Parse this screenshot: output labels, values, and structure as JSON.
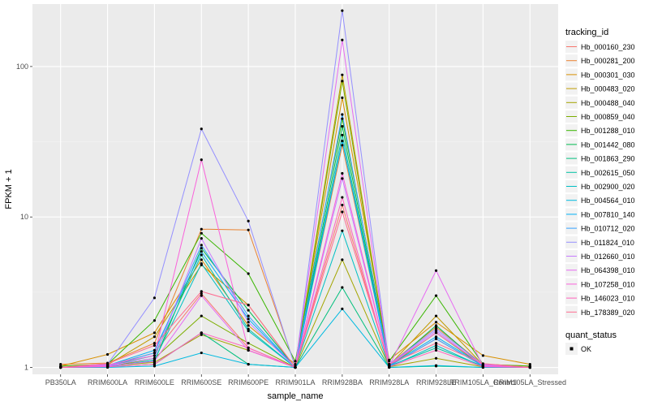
{
  "chart_data": {
    "type": "line",
    "title": "",
    "xlabel": "sample_name",
    "ylabel": "FPKM + 1",
    "y_scale": "log10",
    "ylim": [
      0.9,
      260
    ],
    "y_ticks": [
      1,
      10,
      100
    ],
    "y_tick_labels": [
      "1",
      "10",
      "100"
    ],
    "grid": true,
    "legend_position": "right",
    "categories": [
      "PB350LA",
      "RRIM600LA",
      "RRIM600LE",
      "RRIM600SE",
      "RRIM600PE",
      "RRIM901LA",
      "RRIM928BA",
      "RRIM928LA",
      "RRIM928LE",
      "RRIM105LA_Control",
      "RRIM105LA_Stressed"
    ],
    "series": [
      {
        "name": "Hb_000160_230",
        "color": "#F8766D",
        "values": [
          1.0,
          1.03,
          1.25,
          3.1,
          1.35,
          1.0,
          12.0,
          1.02,
          1.55,
          1.02,
          1.0
        ]
      },
      {
        "name": "Hb_000281_200",
        "color": "#EA8331",
        "values": [
          1.05,
          1.07,
          1.45,
          8.3,
          8.2,
          1.02,
          30.0,
          1.05,
          1.85,
          1.05,
          1.02
        ]
      },
      {
        "name": "Hb_000301_030",
        "color": "#D89000",
        "values": [
          1.02,
          1.22,
          1.7,
          5.2,
          1.9,
          1.05,
          62.0,
          1.12,
          2.0,
          1.2,
          1.05
        ]
      },
      {
        "name": "Hb_000483_020",
        "color": "#C09B00",
        "values": [
          1.0,
          1.04,
          1.6,
          4.8,
          2.6,
          1.0,
          88.0,
          1.03,
          2.2,
          1.04,
          1.0
        ]
      },
      {
        "name": "Hb_000488_040",
        "color": "#A3A500",
        "values": [
          1.0,
          1.02,
          1.08,
          1.65,
          1.3,
          1.0,
          5.2,
          1.01,
          1.15,
          1.01,
          1.0
        ]
      },
      {
        "name": "Hb_000859_040",
        "color": "#7CAE00",
        "values": [
          1.0,
          1.01,
          1.15,
          2.2,
          1.45,
          1.0,
          80.0,
          1.02,
          1.7,
          1.02,
          1.0
        ]
      },
      {
        "name": "Hb_001288_010",
        "color": "#39B600",
        "values": [
          1.02,
          1.05,
          2.05,
          7.8,
          4.2,
          1.1,
          45.0,
          1.1,
          3.0,
          1.05,
          1.02
        ]
      },
      {
        "name": "Hb_001442_080",
        "color": "#00BB4E",
        "values": [
          1.0,
          1.02,
          1.1,
          6.2,
          2.4,
          1.0,
          40.0,
          1.02,
          1.9,
          1.02,
          1.0
        ]
      },
      {
        "name": "Hb_001863_290",
        "color": "#00BF7D",
        "values": [
          1.0,
          1.01,
          1.05,
          1.7,
          1.05,
          1.0,
          3.4,
          1.0,
          1.02,
          1.0,
          1.0
        ]
      },
      {
        "name": "Hb_002615_050",
        "color": "#00C1A3",
        "values": [
          1.0,
          1.02,
          1.2,
          5.6,
          1.8,
          1.0,
          35.0,
          1.02,
          1.35,
          1.02,
          1.0
        ]
      },
      {
        "name": "Hb_002900_020",
        "color": "#00BFC4",
        "values": [
          1.0,
          1.01,
          1.12,
          4.9,
          1.75,
          1.0,
          8.1,
          1.01,
          1.4,
          1.01,
          1.0
        ]
      },
      {
        "name": "Hb_004564_010",
        "color": "#00BAE0",
        "values": [
          1.0,
          1.0,
          1.02,
          1.25,
          1.05,
          1.0,
          2.45,
          1.0,
          1.03,
          1.0,
          1.0
        ]
      },
      {
        "name": "Hb_007810_140",
        "color": "#00B0F6",
        "values": [
          1.0,
          1.03,
          1.3,
          5.9,
          2.1,
          1.0,
          32.0,
          1.03,
          1.6,
          1.03,
          1.0
        ]
      },
      {
        "name": "Hb_010712_020",
        "color": "#35A2FF",
        "values": [
          1.0,
          1.02,
          1.25,
          6.5,
          2.2,
          1.0,
          48.0,
          1.02,
          1.55,
          1.02,
          1.0
        ]
      },
      {
        "name": "Hb_011824_010",
        "color": "#9590FF",
        "values": [
          1.0,
          1.05,
          2.9,
          38.5,
          9.4,
          1.0,
          235.0,
          1.05,
          1.8,
          1.05,
          1.0
        ]
      },
      {
        "name": "Hb_012660_010",
        "color": "#C77CFF",
        "values": [
          1.0,
          1.03,
          1.15,
          7.2,
          2.0,
          1.0,
          18.0,
          1.04,
          1.75,
          1.03,
          1.0
        ]
      },
      {
        "name": "Hb_064398_010",
        "color": "#E76BF3",
        "values": [
          1.0,
          1.02,
          1.1,
          3.0,
          1.3,
          1.0,
          150.0,
          1.02,
          4.4,
          1.02,
          1.0
        ]
      },
      {
        "name": "Hb_107258_010",
        "color": "#FA62DB",
        "values": [
          1.0,
          1.04,
          1.2,
          24.0,
          1.3,
          1.0,
          19.5,
          1.04,
          1.7,
          1.04,
          1.0
        ]
      },
      {
        "name": "Hb_146023_010",
        "color": "#FF62BC",
        "values": [
          1.0,
          1.01,
          1.05,
          1.7,
          1.35,
          1.0,
          13.5,
          1.01,
          1.3,
          1.01,
          1.0
        ]
      },
      {
        "name": "Hb_178389_020",
        "color": "#FF6C91",
        "values": [
          1.0,
          1.06,
          1.4,
          3.2,
          2.6,
          1.0,
          10.8,
          1.05,
          1.45,
          1.06,
          1.0
        ]
      }
    ],
    "legend_title": "tracking_id",
    "shape_legend": {
      "title": "quant_status",
      "entries": [
        "OK"
      ]
    }
  }
}
